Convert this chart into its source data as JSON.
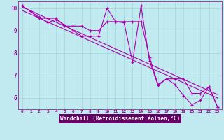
{
  "bg_color": "#c0eaf0",
  "plot_bg_color": "#c0eaf0",
  "line_color": "#aa00aa",
  "grid_color": "#a8d8dc",
  "tick_color": "#880088",
  "xlabel_bg": "#660066",
  "xlabel_fg": "#ffffff",
  "xlim_min": 0,
  "xlim_max": 23,
  "ylim_min": 5.5,
  "ylim_max": 10.3,
  "xticks": [
    0,
    1,
    2,
    3,
    4,
    5,
    6,
    7,
    8,
    9,
    10,
    11,
    12,
    13,
    14,
    15,
    16,
    17,
    18,
    19,
    20,
    21,
    22,
    23
  ],
  "yticks": [
    6,
    7,
    8,
    9,
    10
  ],
  "line1_x": [
    0,
    1,
    2,
    3,
    4,
    5,
    6,
    7,
    8,
    9,
    10,
    11,
    12,
    13,
    14,
    15,
    16,
    17,
    18,
    19,
    20,
    21,
    22,
    23
  ],
  "line1_y": [
    10.1,
    9.85,
    9.6,
    9.35,
    9.5,
    9.25,
    9.0,
    8.75,
    8.75,
    8.75,
    10.0,
    9.4,
    9.35,
    7.6,
    10.1,
    7.65,
    6.55,
    6.85,
    6.6,
    6.1,
    5.7,
    5.9,
    6.5,
    5.6
  ],
  "line2_x": [
    0,
    1,
    2,
    3,
    4,
    5,
    6,
    7,
    8,
    9,
    10,
    11,
    12,
    13,
    14,
    15,
    16,
    17,
    18,
    19,
    20,
    21,
    22,
    23
  ],
  "line2_y": [
    10.1,
    9.85,
    9.55,
    9.55,
    9.55,
    9.2,
    9.2,
    9.2,
    9.0,
    9.0,
    9.4,
    9.4,
    9.4,
    9.4,
    9.4,
    7.8,
    6.6,
    6.85,
    6.85,
    6.85,
    6.2,
    6.2,
    6.5,
    5.6
  ],
  "trend1_x": [
    0,
    23
  ],
  "trend1_y": [
    10.05,
    6.15
  ],
  "trend2_x": [
    0,
    23
  ],
  "trend2_y": [
    9.9,
    6.0
  ],
  "xlabel": "Windchill (Refroidissement éolien,°C)"
}
